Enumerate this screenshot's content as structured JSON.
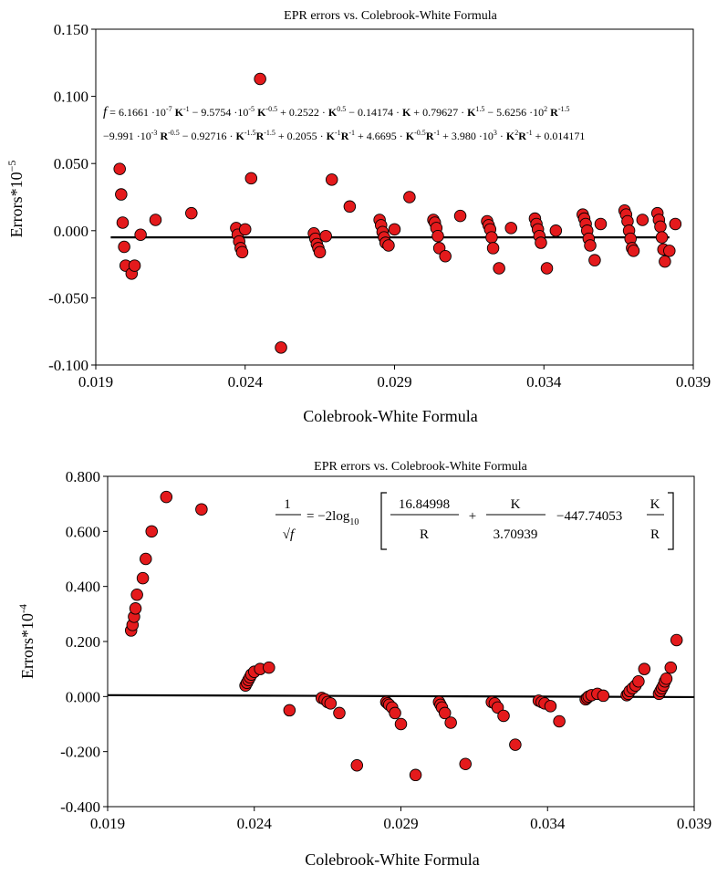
{
  "chart_data": [
    {
      "type": "scatter",
      "title": "EPR errors vs. Colebrook-White Formula",
      "xlabel": "Colebrook-White Formula",
      "ylabel_base": "Errors*10",
      "ylabel_exp": "−5",
      "xlim": [
        0.019,
        0.039
      ],
      "ylim": [
        -0.1,
        0.15
      ],
      "x_ticks": [
        "0.019",
        "0.024",
        "0.029",
        "0.034",
        "0.039"
      ],
      "y_ticks": [
        "-0.100",
        "-0.050",
        "0.000",
        "0.050",
        "0.100",
        "0.150"
      ],
      "equation_line1": "f = 6.1661 ·10^-7 K^-1 − 9.5754 ·10^-5 K^-0.5 + 0.2522 · K^0.5 − 0.14174 · K + 0.79627 · K^1.5 − 5.6256 ·10^2 R^-1.5",
      "equation_line2": "−9.991 ·10^-3 R^-0.5 − 0.92716 · K^-1.5 R^-1.5 + 0.2055 · K^-1 R^-1 + 4.6695 · K^-0.5 R^-1 + 3.980 ·10^3 · K^2 R^-1 + 0.014171",
      "fit_line": {
        "x": [
          0.0195,
          0.0382
        ],
        "y": [
          -0.005,
          -0.005
        ]
      },
      "points": [
        [
          0.0198,
          0.046
        ],
        [
          0.01985,
          0.027
        ],
        [
          0.0199,
          0.006
        ],
        [
          0.01995,
          -0.012
        ],
        [
          0.02,
          -0.026
        ],
        [
          0.0202,
          -0.032
        ],
        [
          0.0203,
          -0.026
        ],
        [
          0.0205,
          -0.003
        ],
        [
          0.021,
          0.008
        ],
        [
          0.0222,
          0.013
        ],
        [
          0.0237,
          0.002
        ],
        [
          0.02375,
          -0.003
        ],
        [
          0.0238,
          -0.008
        ],
        [
          0.02385,
          -0.013
        ],
        [
          0.0239,
          -0.016
        ],
        [
          0.024,
          0.001
        ],
        [
          0.0242,
          0.039
        ],
        [
          0.0245,
          0.113
        ],
        [
          0.0252,
          -0.087
        ],
        [
          0.0263,
          -0.002
        ],
        [
          0.02635,
          -0.006
        ],
        [
          0.0264,
          -0.01
        ],
        [
          0.02645,
          -0.013
        ],
        [
          0.0265,
          -0.016
        ],
        [
          0.0267,
          -0.004
        ],
        [
          0.0269,
          0.038
        ],
        [
          0.0275,
          0.018
        ],
        [
          0.0285,
          0.008
        ],
        [
          0.02855,
          0.004
        ],
        [
          0.0286,
          -0.001
        ],
        [
          0.02865,
          -0.005
        ],
        [
          0.0287,
          -0.009
        ],
        [
          0.0288,
          -0.011
        ],
        [
          0.029,
          0.001
        ],
        [
          0.0295,
          0.025
        ],
        [
          0.0303,
          0.008
        ],
        [
          0.03035,
          0.006
        ],
        [
          0.0304,
          0.002
        ],
        [
          0.03045,
          -0.004
        ],
        [
          0.0305,
          -0.013
        ],
        [
          0.0307,
          -0.019
        ],
        [
          0.0312,
          0.011
        ],
        [
          0.0321,
          0.007
        ],
        [
          0.03215,
          0.004
        ],
        [
          0.0322,
          0.001
        ],
        [
          0.03225,
          -0.005
        ],
        [
          0.0323,
          -0.013
        ],
        [
          0.0325,
          -0.028
        ],
        [
          0.0329,
          0.002
        ],
        [
          0.0337,
          0.009
        ],
        [
          0.03375,
          0.005
        ],
        [
          0.0338,
          0.001
        ],
        [
          0.03385,
          -0.004
        ],
        [
          0.0339,
          -0.009
        ],
        [
          0.0341,
          -0.028
        ],
        [
          0.0344,
          0.0
        ],
        [
          0.0353,
          0.012
        ],
        [
          0.03535,
          0.009
        ],
        [
          0.0354,
          0.005
        ],
        [
          0.03545,
          0.0
        ],
        [
          0.0355,
          -0.006
        ],
        [
          0.03555,
          -0.011
        ],
        [
          0.0357,
          -0.022
        ],
        [
          0.0359,
          0.005
        ],
        [
          0.0367,
          0.015
        ],
        [
          0.03675,
          0.012
        ],
        [
          0.0368,
          0.007
        ],
        [
          0.03685,
          0.0
        ],
        [
          0.0369,
          -0.006
        ],
        [
          0.03695,
          -0.013
        ],
        [
          0.037,
          -0.015
        ],
        [
          0.0373,
          0.008
        ],
        [
          0.0378,
          0.013
        ],
        [
          0.03785,
          0.008
        ],
        [
          0.0379,
          0.003
        ],
        [
          0.03795,
          -0.005
        ],
        [
          0.038,
          -0.014
        ],
        [
          0.03805,
          -0.023
        ],
        [
          0.0382,
          -0.015
        ],
        [
          0.0384,
          0.005
        ]
      ]
    },
    {
      "type": "scatter",
      "title": "EPR errors vs. Colebrook-White Formula",
      "xlabel": "Colebrook-White Formula",
      "ylabel_base": "Errors*10",
      "ylabel_exp": "-4",
      "xlim": [
        0.019,
        0.039
      ],
      "ylim": [
        -0.4,
        0.8
      ],
      "x_ticks": [
        "0.019",
        "0.024",
        "0.029",
        "0.034",
        "0.039"
      ],
      "y_ticks": [
        "-0.400",
        "-0.200",
        "0.000",
        "0.200",
        "0.400",
        "0.600",
        "0.800"
      ],
      "equation": {
        "lhs_num": "1",
        "lhs_den": "√f",
        "eq": "= −2log",
        "sub": "10",
        "t1_num": "16.84998",
        "t1_den": "R",
        "plus": "+",
        "t2_num": "K",
        "t2_den": "3.70939",
        "minus": "−447.74053",
        "t3_num": "K",
        "t3_den": "R"
      },
      "fit_line": {
        "x": [
          0.019,
          0.039
        ],
        "y": [
          0.005,
          -0.002
        ]
      },
      "points": [
        [
          0.0198,
          0.24
        ],
        [
          0.01985,
          0.26
        ],
        [
          0.0199,
          0.29
        ],
        [
          0.01995,
          0.32
        ],
        [
          0.02,
          0.37
        ],
        [
          0.0202,
          0.43
        ],
        [
          0.0203,
          0.5
        ],
        [
          0.0205,
          0.6
        ],
        [
          0.021,
          0.725
        ],
        [
          0.0222,
          0.68
        ],
        [
          0.0237,
          0.04
        ],
        [
          0.02375,
          0.05
        ],
        [
          0.0238,
          0.06
        ],
        [
          0.02385,
          0.07
        ],
        [
          0.0239,
          0.08
        ],
        [
          0.024,
          0.09
        ],
        [
          0.0242,
          0.1
        ],
        [
          0.0245,
          0.105
        ],
        [
          0.0252,
          -0.05
        ],
        [
          0.0263,
          -0.005
        ],
        [
          0.0264,
          -0.01
        ],
        [
          0.0265,
          -0.02
        ],
        [
          0.0266,
          -0.025
        ],
        [
          0.0269,
          -0.06
        ],
        [
          0.0275,
          -0.25
        ],
        [
          0.0285,
          -0.02
        ],
        [
          0.02855,
          -0.025
        ],
        [
          0.0286,
          -0.03
        ],
        [
          0.0287,
          -0.04
        ],
        [
          0.0288,
          -0.06
        ],
        [
          0.029,
          -0.1
        ],
        [
          0.0295,
          -0.285
        ],
        [
          0.0303,
          -0.02
        ],
        [
          0.03035,
          -0.03
        ],
        [
          0.0304,
          -0.04
        ],
        [
          0.0305,
          -0.06
        ],
        [
          0.0307,
          -0.095
        ],
        [
          0.0312,
          -0.245
        ],
        [
          0.0321,
          -0.02
        ],
        [
          0.0322,
          -0.025
        ],
        [
          0.0323,
          -0.04
        ],
        [
          0.0325,
          -0.07
        ],
        [
          0.0329,
          -0.175
        ],
        [
          0.0337,
          -0.015
        ],
        [
          0.0338,
          -0.02
        ],
        [
          0.0339,
          -0.025
        ],
        [
          0.0341,
          -0.035
        ],
        [
          0.0344,
          -0.09
        ],
        [
          0.0353,
          -0.01
        ],
        [
          0.03535,
          -0.005
        ],
        [
          0.0354,
          0.0
        ],
        [
          0.0355,
          0.005
        ],
        [
          0.0357,
          0.01
        ],
        [
          0.0359,
          0.003
        ],
        [
          0.0367,
          0.005
        ],
        [
          0.03675,
          0.01
        ],
        [
          0.0368,
          0.02
        ],
        [
          0.0369,
          0.03
        ],
        [
          0.037,
          0.04
        ],
        [
          0.0371,
          0.055
        ],
        [
          0.0373,
          0.1
        ],
        [
          0.0378,
          0.01
        ],
        [
          0.03785,
          0.02
        ],
        [
          0.0379,
          0.03
        ],
        [
          0.03795,
          0.04
        ],
        [
          0.038,
          0.055
        ],
        [
          0.03805,
          0.065
        ],
        [
          0.0382,
          0.105
        ],
        [
          0.0384,
          0.205
        ]
      ]
    }
  ],
  "colors": {
    "marker_fill": "#e41a1c",
    "marker_stroke": "#000000",
    "axis": "#000000"
  }
}
